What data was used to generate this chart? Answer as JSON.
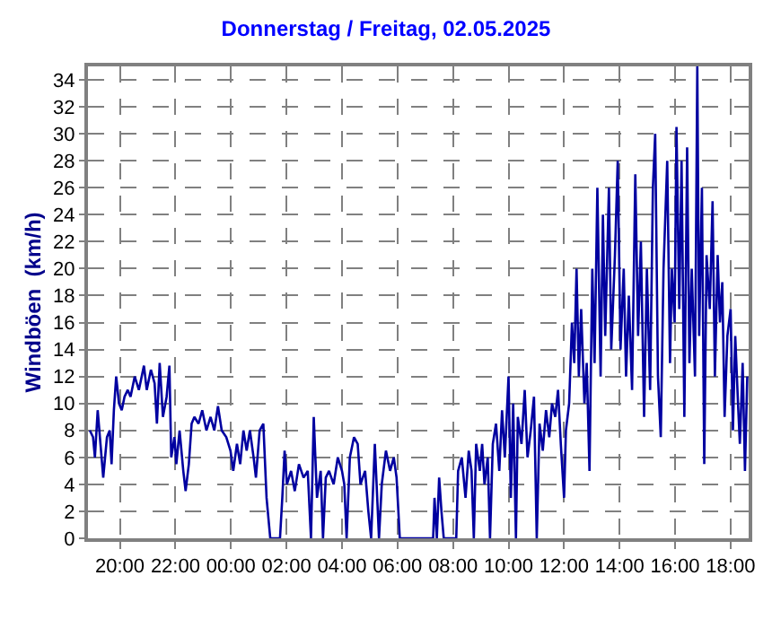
{
  "chart_data": {
    "type": "line",
    "title": "Donnerstag / Freitag, 02.05.2025",
    "ylabel": "Windböen  (km/h)",
    "color": "#0000a0",
    "grid": true,
    "line_style": "solid",
    "xlim": [
      "2025-05-01T18:51",
      "2025-05-02T18:39"
    ],
    "xticks": [
      {
        "value": "2025-05-01T20:00",
        "label": "20:00"
      },
      {
        "value": "2025-05-01T22:00",
        "label": "22:00"
      },
      {
        "value": "2025-05-02T00:00",
        "label": "00:00"
      },
      {
        "value": "2025-05-02T02:00",
        "label": "02:00"
      },
      {
        "value": "2025-05-02T04:00",
        "label": "04:00"
      },
      {
        "value": "2025-05-02T06:00",
        "label": "06:00"
      },
      {
        "value": "2025-05-02T08:00",
        "label": "08:00"
      },
      {
        "value": "2025-05-02T10:00",
        "label": "10:00"
      },
      {
        "value": "2025-05-02T12:00",
        "label": "12:00"
      },
      {
        "value": "2025-05-02T14:00",
        "label": "14:00"
      },
      {
        "value": "2025-05-02T16:00",
        "label": "16:00"
      },
      {
        "value": "2025-05-02T18:00",
        "label": "18:00"
      }
    ],
    "ylim": [
      0,
      35
    ],
    "yticks": [
      0,
      2,
      4,
      6,
      8,
      10,
      12,
      14,
      16,
      18,
      20,
      22,
      24,
      26,
      28,
      30,
      32,
      34
    ],
    "x": [
      "2025-05-01T18:55",
      "2025-05-01T19:02",
      "2025-05-01T19:06",
      "2025-05-01T19:12",
      "2025-05-01T19:18",
      "2025-05-01T19:24",
      "2025-05-01T19:32",
      "2025-05-01T19:38",
      "2025-05-01T19:42",
      "2025-05-01T19:47",
      "2025-05-01T19:52",
      "2025-05-01T19:58",
      "2025-05-01T20:04",
      "2025-05-01T20:10",
      "2025-05-01T20:17",
      "2025-05-01T20:23",
      "2025-05-01T20:32",
      "2025-05-01T20:41",
      "2025-05-01T20:52",
      "2025-05-01T20:58",
      "2025-05-01T21:07",
      "2025-05-01T21:15",
      "2025-05-01T21:20",
      "2025-05-01T21:26",
      "2025-05-01T21:33",
      "2025-05-01T21:41",
      "2025-05-01T21:47",
      "2025-05-01T21:51",
      "2025-05-01T21:58",
      "2025-05-01T22:02",
      "2025-05-01T22:09",
      "2025-05-01T22:17",
      "2025-05-01T22:22",
      "2025-05-01T22:29",
      "2025-05-01T22:35",
      "2025-05-01T22:41",
      "2025-05-01T22:50",
      "2025-05-01T22:58",
      "2025-05-01T23:07",
      "2025-05-01T23:16",
      "2025-05-01T23:24",
      "2025-05-01T23:32",
      "2025-05-01T23:40",
      "2025-05-01T23:50",
      "2025-05-01T23:59",
      "2025-05-02T00:05",
      "2025-05-02T00:13",
      "2025-05-02T00:20",
      "2025-05-02T00:27",
      "2025-05-02T00:34",
      "2025-05-02T00:41",
      "2025-05-02T00:49",
      "2025-05-02T00:54",
      "2025-05-02T01:02",
      "2025-05-02T01:10",
      "2025-05-02T01:17",
      "2025-05-02T01:25",
      "2025-05-02T01:46",
      "2025-05-02T01:51",
      "2025-05-02T01:56",
      "2025-05-02T02:01",
      "2025-05-02T02:10",
      "2025-05-02T02:18",
      "2025-05-02T02:27",
      "2025-05-02T02:37",
      "2025-05-02T02:46",
      "2025-05-02T02:53",
      "2025-05-02T02:59",
      "2025-05-02T03:06",
      "2025-05-02T03:14",
      "2025-05-02T03:19",
      "2025-05-02T03:25",
      "2025-05-02T03:32",
      "2025-05-02T03:42",
      "2025-05-02T03:51",
      "2025-05-02T04:00",
      "2025-05-02T04:05",
      "2025-05-02T04:10",
      "2025-05-02T04:17",
      "2025-05-02T04:26",
      "2025-05-02T04:34",
      "2025-05-02T04:40",
      "2025-05-02T04:50",
      "2025-05-02T04:57",
      "2025-05-02T05:03",
      "2025-05-02T05:11",
      "2025-05-02T05:20",
      "2025-05-02T05:26",
      "2025-05-02T05:35",
      "2025-05-02T05:44",
      "2025-05-02T05:52",
      "2025-05-02T05:58",
      "2025-05-02T06:05",
      "2025-05-02T07:17",
      "2025-05-02T07:20",
      "2025-05-02T07:25",
      "2025-05-02T07:30",
      "2025-05-02T07:35",
      "2025-05-02T07:40",
      "2025-05-02T08:07",
      "2025-05-02T08:11",
      "2025-05-02T08:19",
      "2025-05-02T08:27",
      "2025-05-02T08:34",
      "2025-05-02T08:40",
      "2025-05-02T08:45",
      "2025-05-02T08:50",
      "2025-05-02T08:58",
      "2025-05-02T09:03",
      "2025-05-02T09:08",
      "2025-05-02T09:15",
      "2025-05-02T09:20",
      "2025-05-02T09:26",
      "2025-05-02T09:33",
      "2025-05-02T09:40",
      "2025-05-02T09:46",
      "2025-05-02T09:52",
      "2025-05-02T10:00",
      "2025-05-02T10:05",
      "2025-05-02T10:10",
      "2025-05-02T10:16",
      "2025-05-02T10:20",
      "2025-05-02T10:28",
      "2025-05-02T10:35",
      "2025-05-02T10:41",
      "2025-05-02T10:48",
      "2025-05-02T10:55",
      "2025-05-02T11:01",
      "2025-05-02T11:07",
      "2025-05-02T11:14",
      "2025-05-02T11:21",
      "2025-05-02T11:28",
      "2025-05-02T11:34",
      "2025-05-02T11:41",
      "2025-05-02T11:47",
      "2025-05-02T11:53",
      "2025-05-02T12:00",
      "2025-05-02T12:04",
      "2025-05-02T12:11",
      "2025-05-02T12:17",
      "2025-05-02T12:22",
      "2025-05-02T12:27",
      "2025-05-02T12:32",
      "2025-05-02T12:37",
      "2025-05-02T12:44",
      "2025-05-02T12:49",
      "2025-05-02T12:55",
      "2025-05-02T13:01",
      "2025-05-02T13:06",
      "2025-05-02T13:12",
      "2025-05-02T13:19",
      "2025-05-02T13:24",
      "2025-05-02T13:29",
      "2025-05-02T13:37",
      "2025-05-02T13:42",
      "2025-05-02T13:50",
      "2025-05-02T13:56",
      "2025-05-02T14:02",
      "2025-05-02T14:09",
      "2025-05-02T14:14",
      "2025-05-02T14:20",
      "2025-05-02T14:27",
      "2025-05-02T14:34",
      "2025-05-02T14:40",
      "2025-05-02T14:46",
      "2025-05-02T14:53",
      "2025-05-02T14:59",
      "2025-05-02T15:06",
      "2025-05-02T15:12",
      "2025-05-02T15:17",
      "2025-05-02T15:23",
      "2025-05-02T15:29",
      "2025-05-02T15:35",
      "2025-05-02T15:43",
      "2025-05-02T15:49",
      "2025-05-02T15:53",
      "2025-05-02T15:59",
      "2025-05-02T16:03",
      "2025-05-02T16:09",
      "2025-05-02T16:14",
      "2025-05-02T16:20",
      "2025-05-02T16:26",
      "2025-05-02T16:31",
      "2025-05-02T16:36",
      "2025-05-02T16:43",
      "2025-05-02T16:48",
      "2025-05-02T16:52",
      "2025-05-02T16:58",
      "2025-05-02T17:03",
      "2025-05-02T17:08",
      "2025-05-02T17:15",
      "2025-05-02T17:21",
      "2025-05-02T17:26",
      "2025-05-02T17:32",
      "2025-05-02T17:37",
      "2025-05-02T17:42",
      "2025-05-02T17:47",
      "2025-05-02T17:53",
      "2025-05-02T18:00",
      "2025-05-02T18:05",
      "2025-05-02T18:10",
      "2025-05-02T18:16",
      "2025-05-02T18:20",
      "2025-05-02T18:26",
      "2025-05-02T18:31",
      "2025-05-02T18:36"
    ],
    "values": [
      8,
      7.5,
      6,
      9.5,
      7,
      4.5,
      7.5,
      8,
      5.5,
      9.5,
      12,
      10,
      9.5,
      10.5,
      11,
      10.5,
      12,
      11,
      12.8,
      11,
      12.5,
      11.5,
      8.5,
      13,
      9,
      10.5,
      12.8,
      6,
      7.5,
      5.5,
      8,
      5,
      3.5,
      5.5,
      8.5,
      9,
      8.5,
      9.5,
      8,
      9,
      8,
      9.8,
      8,
      7.5,
      6.5,
      5,
      7,
      5.5,
      8,
      6.5,
      8,
      6,
      4.5,
      8,
      8.5,
      3,
      0,
      0,
      3,
      6.5,
      4,
      5,
      3.5,
      5.5,
      4.5,
      5,
      0,
      9,
      3,
      5,
      0,
      4.5,
      5,
      4,
      6,
      5,
      4,
      0,
      6,
      7.5,
      7,
      4,
      5,
      2,
      0,
      7,
      0,
      4,
      6.5,
      5,
      6,
      4.5,
      0,
      0,
      3,
      0,
      4.5,
      2,
      0,
      0,
      5,
      6,
      3,
      6.5,
      5,
      0,
      7,
      5,
      7,
      4,
      6,
      0,
      7,
      8.5,
      5,
      9.5,
      6,
      12,
      3,
      10,
      0,
      9,
      7,
      11,
      6,
      8,
      10.5,
      0,
      8.5,
      6.5,
      9.5,
      7.5,
      10,
      9,
      11,
      7,
      3,
      8,
      10,
      16,
      13,
      20,
      12,
      17,
      10,
      13,
      5,
      20,
      13,
      26,
      12,
      24,
      15,
      26,
      14,
      21,
      28,
      14,
      20,
      12,
      18,
      11,
      27,
      15,
      22,
      9,
      20,
      11,
      26,
      30,
      12,
      7.5,
      20,
      28,
      13,
      20,
      16,
      30.5,
      17,
      28,
      9,
      29,
      13,
      20,
      12,
      35,
      15,
      26,
      5.5,
      21,
      17,
      25,
      12,
      21,
      16,
      19,
      9,
      15,
      17,
      8,
      15,
      10,
      7,
      13,
      5,
      12
    ]
  }
}
